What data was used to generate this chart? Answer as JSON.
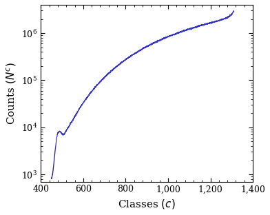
{
  "xlabel": "Classes $(c)$",
  "ylabel": "Counts $(N^c)$",
  "line_color": "#3333cc",
  "line_color_dark": "#222299",
  "xlim": [
    400,
    1400
  ],
  "ylim_min": 700,
  "ylim_max": 4000000,
  "figsize": [
    3.92,
    3.12
  ],
  "dpi": 100,
  "curve_points": [
    [
      450,
      800
    ],
    [
      455,
      1000
    ],
    [
      460,
      1500
    ],
    [
      465,
      2500
    ],
    [
      470,
      4000
    ],
    [
      475,
      6000
    ],
    [
      480,
      7500
    ],
    [
      485,
      8000
    ],
    [
      490,
      8200
    ],
    [
      495,
      7800
    ],
    [
      500,
      7200
    ],
    [
      505,
      7000
    ],
    [
      510,
      7200
    ],
    [
      515,
      7800
    ],
    [
      520,
      8500
    ],
    [
      530,
      10000
    ],
    [
      540,
      12000
    ],
    [
      550,
      14000
    ],
    [
      560,
      17000
    ],
    [
      570,
      20000
    ],
    [
      580,
      24000
    ],
    [
      600,
      33000
    ],
    [
      620,
      44000
    ],
    [
      640,
      58000
    ],
    [
      660,
      74000
    ],
    [
      680,
      93000
    ],
    [
      700,
      115000
    ],
    [
      720,
      140000
    ],
    [
      740,
      168000
    ],
    [
      760,
      200000
    ],
    [
      780,
      235000
    ],
    [
      800,
      275000
    ],
    [
      820,
      315000
    ],
    [
      840,
      360000
    ],
    [
      860,
      410000
    ],
    [
      880,
      465000
    ],
    [
      900,
      520000
    ],
    [
      950,
      670000
    ],
    [
      1000,
      840000
    ],
    [
      1050,
      1020000
    ],
    [
      1100,
      1220000
    ],
    [
      1150,
      1430000
    ],
    [
      1200,
      1650000
    ],
    [
      1250,
      1920000
    ],
    [
      1280,
      2150000
    ],
    [
      1295,
      2400000
    ],
    [
      1305,
      2700000
    ],
    [
      1310,
      3000000
    ]
  ]
}
